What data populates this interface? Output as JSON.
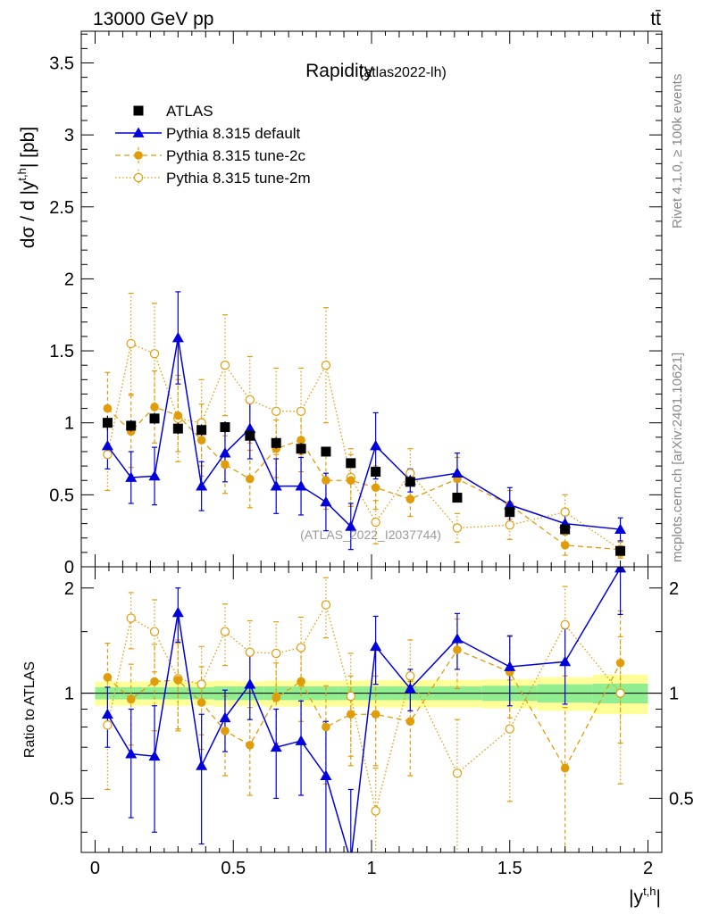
{
  "header": {
    "energy_label": "13000 GeV pp",
    "process_label": "tt̄",
    "side_label_rivet": "Rivet 4.1.0, ≥ 100k events",
    "side_label_mcplots": "mcplots.cern.ch [arXiv:2401.10621]"
  },
  "chart_data": {
    "type": "line",
    "title": "Rapidity",
    "subtitle": "(atlas2022-lh)",
    "watermark": "(ATLAS_2022_I2037744)",
    "xlabel": "|y^{t,h}|",
    "xlabel_main": "|y",
    "xlabel_sup": "t,h",
    "xlabel_close": "|",
    "ylabel": "dσ / d |y^{t,h}| [pb]",
    "ylabel_main": "dσ / d |y",
    "ylabel_sup": "t,h",
    "ylabel_close": "| [pb]",
    "ratio_ylabel": "Ratio to ATLAS",
    "xlim": [
      -0.05,
      2.05
    ],
    "ylim": [
      0,
      3.72
    ],
    "ratio_ylim": [
      0.35,
      2.3
    ],
    "x_ticks": [
      "0",
      "0.5",
      "1",
      "1.5",
      "2"
    ],
    "y_ticks": [
      "0",
      "0.5",
      "1",
      "1.5",
      "2",
      "2.5",
      "3",
      "3.5"
    ],
    "ratio_y_ticks": [
      "0.5",
      "1",
      "2"
    ],
    "legend_position": "top-left",
    "bin_edges": [
      0,
      0.09,
      0.17,
      0.26,
      0.34,
      0.43,
      0.51,
      0.61,
      0.7,
      0.79,
      0.88,
      0.97,
      1.06,
      1.22,
      1.4,
      1.6,
      1.8,
      2.0
    ],
    "x": [
      0.045,
      0.13,
      0.215,
      0.3,
      0.385,
      0.47,
      0.56,
      0.655,
      0.745,
      0.835,
      0.925,
      1.015,
      1.14,
      1.31,
      1.5,
      1.7,
      1.9
    ],
    "series": [
      {
        "name": "ATLAS",
        "style": "data",
        "color": "#000000",
        "values": [
          1.0,
          0.98,
          1.03,
          0.96,
          0.95,
          0.97,
          0.91,
          0.86,
          0.82,
          0.8,
          0.72,
          0.66,
          0.59,
          0.48,
          0.38,
          0.26,
          0.11
        ],
        "errors": [
          0.05,
          0.04,
          0.04,
          0.04,
          0.04,
          0.04,
          0.04,
          0.04,
          0.04,
          0.03,
          0.03,
          0.03,
          0.03,
          0.03,
          0.03,
          0.02,
          0.02
        ]
      },
      {
        "name": "Pythia 8.315 default",
        "style": "solid-triangle",
        "color": "#0000dd",
        "values": [
          0.84,
          0.62,
          0.63,
          1.59,
          0.56,
          0.79,
          0.96,
          0.56,
          0.56,
          0.45,
          0.28,
          0.84,
          0.6,
          0.65,
          0.43,
          0.3,
          0.26
        ],
        "errors": [
          0.16,
          0.18,
          0.2,
          0.32,
          0.17,
          0.2,
          0.21,
          0.19,
          0.2,
          0.2,
          0.16,
          0.23,
          0.08,
          0.14,
          0.12,
          0.07,
          0.08
        ],
        "ratio": [
          0.87,
          0.67,
          0.66,
          1.7,
          0.62,
          0.85,
          1.06,
          0.7,
          0.73,
          0.58,
          0.33,
          1.36,
          1.03,
          1.43,
          1.19,
          1.23,
          2.28
        ],
        "ratio_errors": [
          0.17,
          0.23,
          0.26,
          0.3,
          0.25,
          0.17,
          0.22,
          0.2,
          0.22,
          0.25,
          0.2,
          0.3,
          0.14,
          0.26,
          0.27,
          0.3,
          0.6
        ]
      },
      {
        "name": "Pythia 8.315 tune-2c",
        "style": "dashed-dot",
        "color": "#e19c0a",
        "values": [
          1.1,
          0.94,
          1.11,
          1.05,
          0.88,
          0.71,
          0.61,
          0.82,
          0.88,
          0.6,
          0.6,
          0.55,
          0.47,
          0.61,
          0.43,
          0.15,
          0.12
        ],
        "errors": [
          0.25,
          0.25,
          0.25,
          0.25,
          0.25,
          0.2,
          0.2,
          0.2,
          0.22,
          0.2,
          0.18,
          0.15,
          0.12,
          0.15,
          0.1,
          0.07,
          0.05
        ],
        "ratio": [
          1.11,
          0.96,
          1.08,
          1.09,
          0.94,
          0.78,
          0.71,
          0.97,
          1.08,
          0.8,
          0.87,
          0.87,
          0.83,
          1.33,
          1.15,
          0.61,
          1.22
        ],
        "ratio_errors": [
          0.28,
          0.25,
          0.3,
          0.3,
          0.25,
          0.2,
          0.2,
          0.25,
          0.25,
          0.25,
          0.25,
          0.25,
          0.25,
          0.3,
          0.3,
          0.3,
          0.5
        ]
      },
      {
        "name": "Pythia 8.315 tune-2m",
        "style": "dotted-open-circle",
        "color": "#e19c0a",
        "values": [
          0.78,
          1.55,
          1.48,
          1.03,
          1.0,
          1.4,
          1.16,
          1.08,
          1.08,
          1.4,
          0.62,
          0.31,
          0.65,
          0.27,
          0.29,
          0.38,
          0.12
        ],
        "errors": [
          0.25,
          0.35,
          0.35,
          0.3,
          0.3,
          0.35,
          0.3,
          0.3,
          0.3,
          0.4,
          0.2,
          0.15,
          0.17,
          0.1,
          0.1,
          0.12,
          0.06
        ],
        "ratio": [
          0.81,
          1.64,
          1.5,
          1.1,
          1.06,
          1.5,
          1.31,
          1.3,
          1.35,
          1.79,
          0.98,
          0.46,
          1.12,
          0.59,
          0.79,
          1.57,
          1.0
        ],
        "ratio_errors": [
          0.28,
          0.3,
          0.35,
          0.32,
          0.3,
          0.3,
          0.3,
          0.3,
          0.3,
          0.35,
          0.32,
          0.15,
          0.3,
          0.25,
          0.3,
          0.45,
          0.45
        ]
      }
    ],
    "ratio_band": {
      "inner_halfwidth": [
        0.04,
        0.04,
        0.04,
        0.04,
        0.04,
        0.045,
        0.045,
        0.045,
        0.045,
        0.045,
        0.045,
        0.045,
        0.045,
        0.045,
        0.05,
        0.06,
        0.065
      ],
      "outer_halfwidth": [
        0.08,
        0.08,
        0.08,
        0.08,
        0.08,
        0.085,
        0.08,
        0.085,
        0.085,
        0.085,
        0.085,
        0.09,
        0.09,
        0.09,
        0.095,
        0.11,
        0.13
      ],
      "inner_color": "#90ee90",
      "outer_color": "#ffff99"
    }
  }
}
